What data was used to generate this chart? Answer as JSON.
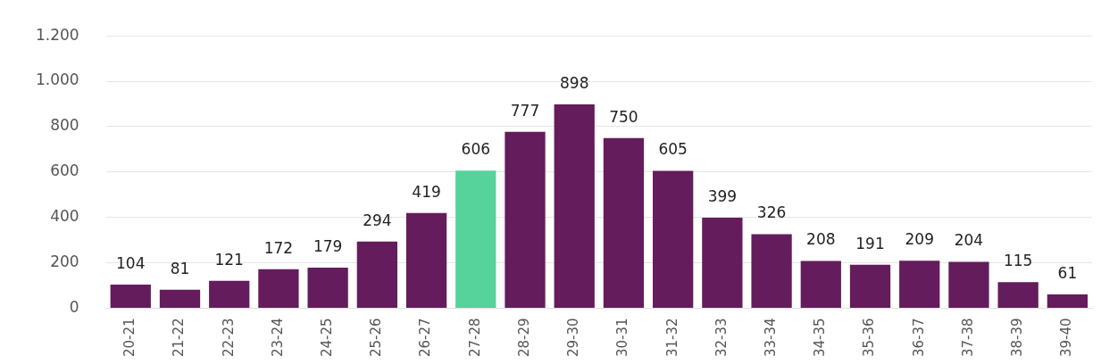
{
  "chart_data": {
    "type": "bar",
    "categories": [
      "20-21",
      "21-22",
      "22-23",
      "23-24",
      "24-25",
      "25-26",
      "26-27",
      "27-28",
      "28-29",
      "29-30",
      "30-31",
      "31-32",
      "32-33",
      "33-34",
      "34-35",
      "35-36",
      "36-37",
      "37-38",
      "38-39",
      "39-40"
    ],
    "values": [
      104,
      81,
      121,
      172,
      179,
      294,
      419,
      606,
      777,
      898,
      750,
      605,
      399,
      326,
      208,
      191,
      209,
      204,
      115,
      61
    ],
    "colors": [
      "#641c5c",
      "#641c5c",
      "#641c5c",
      "#641c5c",
      "#641c5c",
      "#641c5c",
      "#641c5c",
      "#56d39a",
      "#641c5c",
      "#641c5c",
      "#641c5c",
      "#641c5c",
      "#641c5c",
      "#641c5c",
      "#641c5c",
      "#641c5c",
      "#641c5c",
      "#641c5c",
      "#641c5c",
      "#641c5c"
    ],
    "ylim": [
      0,
      1200
    ],
    "yticks": [
      0,
      200,
      400,
      600,
      800,
      {
        "value": 1000,
        "label": "1.000"
      },
      {
        "value": 1200,
        "label": "1.200"
      }
    ],
    "grid": "y",
    "data_labels": true
  }
}
